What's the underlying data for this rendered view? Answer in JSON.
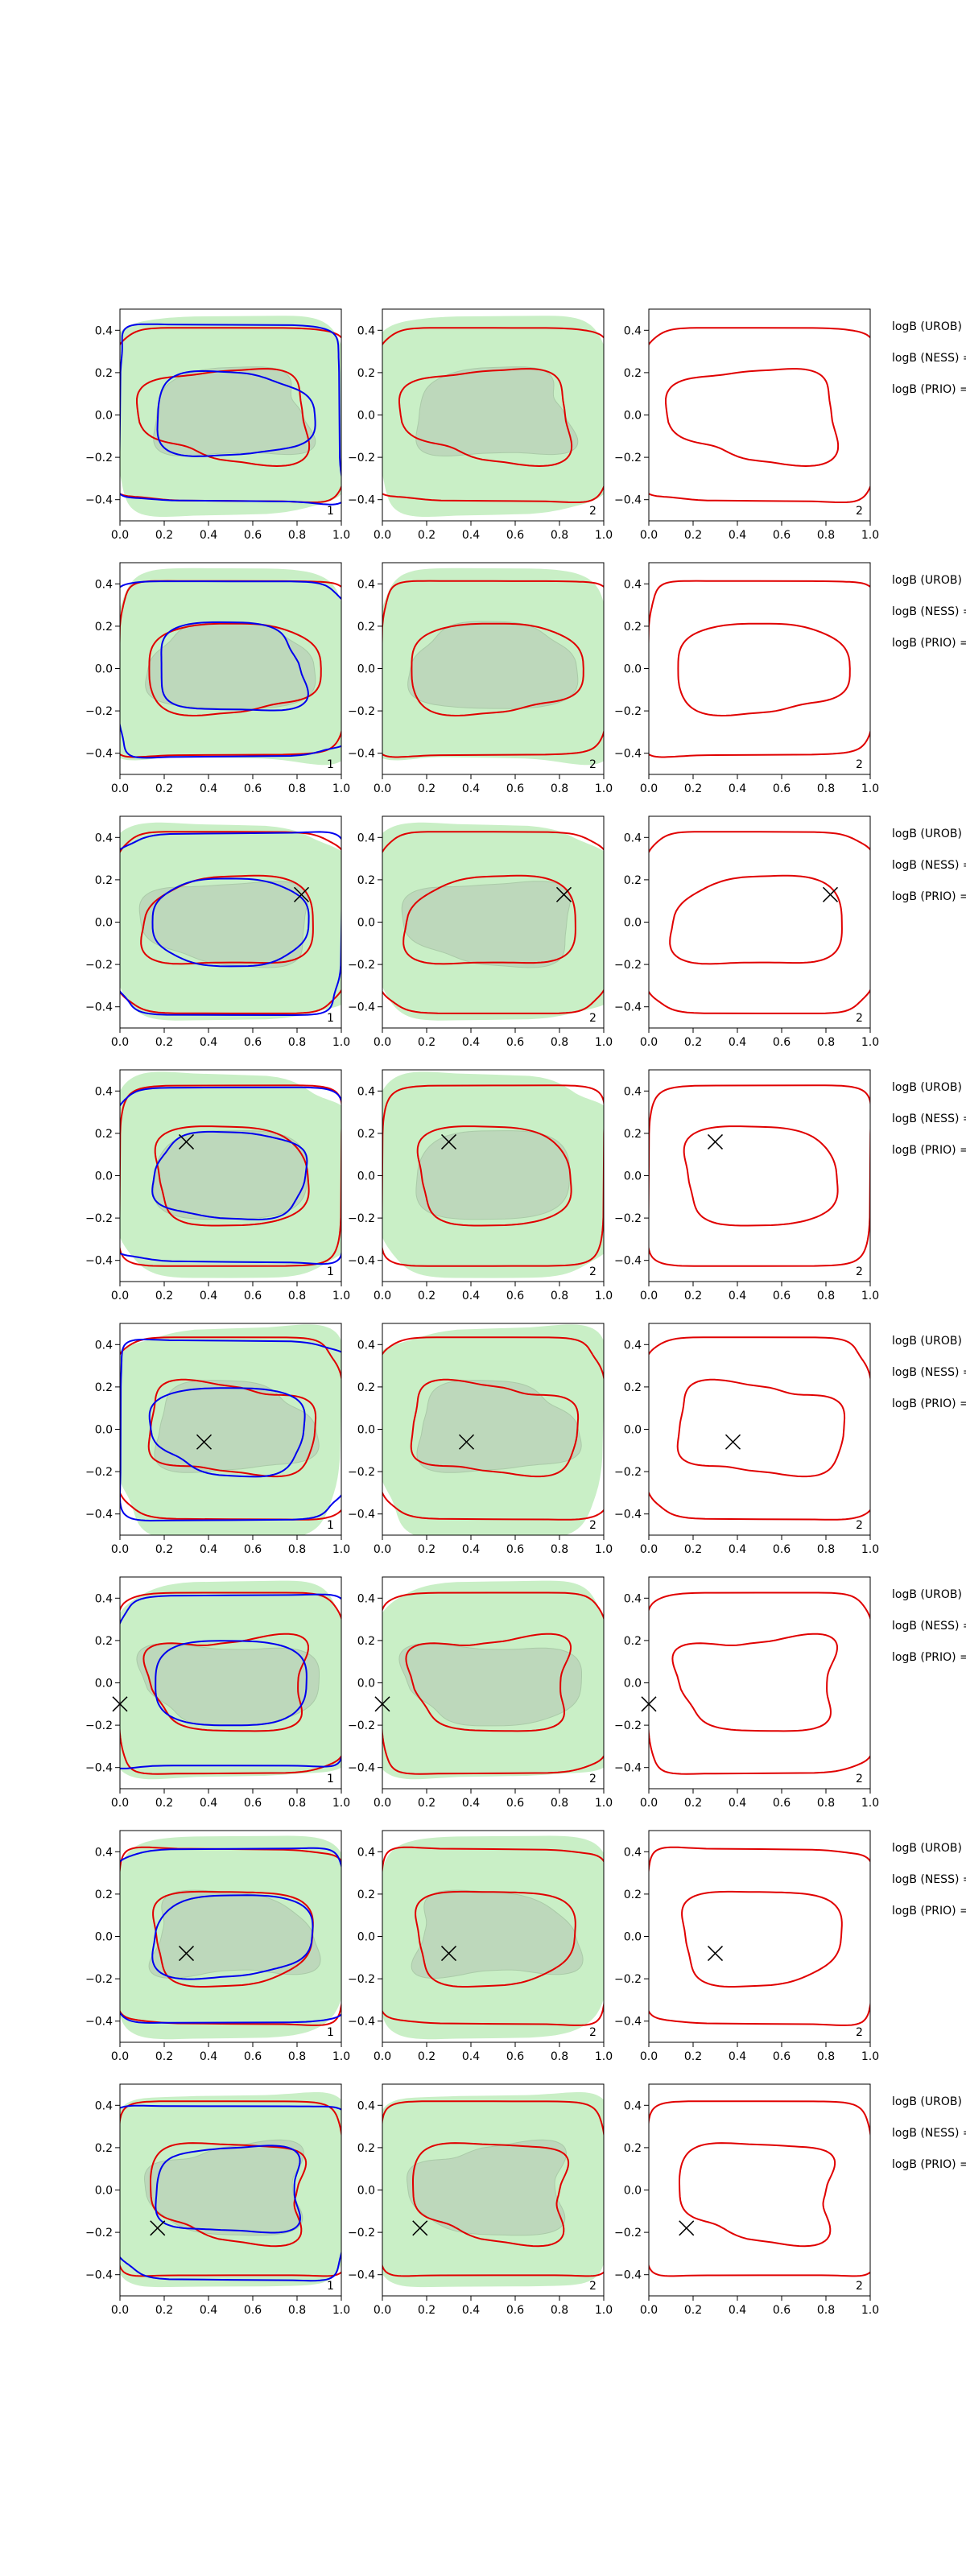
{
  "chart_data": {
    "type": "contour",
    "xlim": [
      0,
      1
    ],
    "ylim": [
      -0.5,
      0.5
    ],
    "xticks": [
      {
        "value": 0,
        "label": "0.0"
      },
      {
        "value": 0.2,
        "label": "0.2"
      },
      {
        "value": 0.4,
        "label": "0.4"
      },
      {
        "value": 0.6,
        "label": "0.6"
      },
      {
        "value": 0.8,
        "label": "0.8"
      },
      {
        "value": 1,
        "label": "1.0"
      }
    ],
    "yticks": [
      {
        "value": -0.4,
        "label": "−0.4"
      },
      {
        "value": -0.2,
        "label": "−0.2"
      },
      {
        "value": 0,
        "label": "0.0"
      },
      {
        "value": 0.2,
        "label": "0.2"
      },
      {
        "value": 0.4,
        "label": "0.4"
      }
    ],
    "panel_labels": [
      "1",
      "2",
      "2"
    ],
    "annotations": [
      "logB (UROB) =",
      "logB (NESS) =",
      "logB (PRIO) ="
    ],
    "markers": {
      "x": [
        null,
        null,
        0.82,
        0.3,
        0.38,
        0.0,
        0.3,
        0.17
      ],
      "y": [
        null,
        null,
        0.13,
        0.16,
        -0.06,
        -0.1,
        -0.08,
        -0.18
      ]
    }
  }
}
